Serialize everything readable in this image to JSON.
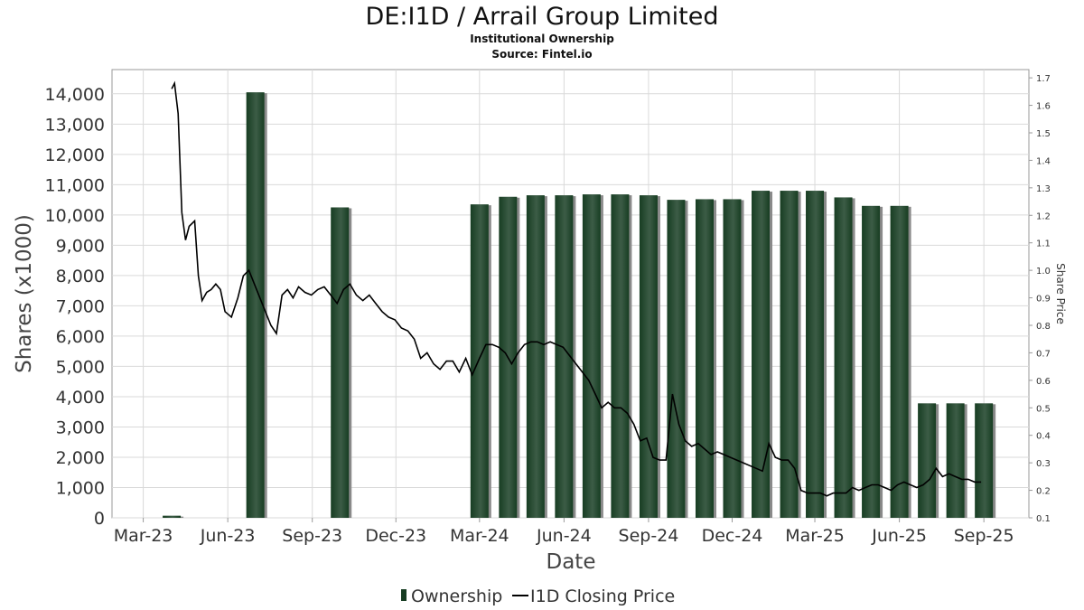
{
  "chart_data": {
    "type": "bar",
    "title": "DE:I1D / Arrail Group Limited",
    "subtitles": [
      "Institutional Ownership",
      "Source: Fintel.io"
    ],
    "xlabel": "Date",
    "ylabel": "Shares (x1000)",
    "y2label": "Share Price",
    "x_ticks": [
      "Mar-23",
      "Jun-23",
      "Sep-23",
      "Dec-23",
      "Mar-24",
      "Jun-24",
      "Sep-24",
      "Dec-24",
      "Mar-25",
      "Jun-25",
      "Sep-25"
    ],
    "y_ticks": [
      0,
      1000,
      2000,
      3000,
      4000,
      5000,
      6000,
      7000,
      8000,
      9000,
      10000,
      11000,
      12000,
      13000,
      14000
    ],
    "y2_ticks": [
      0.1,
      0.2,
      0.3,
      0.4,
      0.5,
      0.6,
      0.7,
      0.8,
      0.9,
      1.0,
      1.1,
      1.2,
      1.3,
      1.4,
      1.5,
      1.6,
      1.7
    ],
    "ylim": [
      0,
      14800
    ],
    "y2lim": [
      0.1,
      1.73
    ],
    "grid": true,
    "legend_position": "bottom",
    "colors": {
      "bar_dark": "#173d22",
      "bar_light": "#3c5c46",
      "bar_shadow": "#8a8a8a",
      "line": "#000000",
      "grid": "#d9d9d9"
    },
    "series": [
      {
        "name": "Ownership",
        "type": "bar",
        "points": [
          {
            "date": "2023-04-01",
            "value": 70
          },
          {
            "date": "2023-07-01",
            "value": 14050
          },
          {
            "date": "2023-10-01",
            "value": 10250
          },
          {
            "date": "2024-03-01",
            "value": 10350
          },
          {
            "date": "2024-04-01",
            "value": 10600
          },
          {
            "date": "2024-05-01",
            "value": 10650
          },
          {
            "date": "2024-06-01",
            "value": 10650
          },
          {
            "date": "2024-07-01",
            "value": 10680
          },
          {
            "date": "2024-08-01",
            "value": 10680
          },
          {
            "date": "2024-09-01",
            "value": 10650
          },
          {
            "date": "2024-10-01",
            "value": 10500
          },
          {
            "date": "2024-11-01",
            "value": 10520
          },
          {
            "date": "2024-12-01",
            "value": 10520
          },
          {
            "date": "2025-01-01",
            "value": 10800
          },
          {
            "date": "2025-02-01",
            "value": 10800
          },
          {
            "date": "2025-03-01",
            "value": 10800
          },
          {
            "date": "2025-04-01",
            "value": 10580
          },
          {
            "date": "2025-05-01",
            "value": 10300
          },
          {
            "date": "2025-06-01",
            "value": 10300
          },
          {
            "date": "2025-07-01",
            "value": 3780
          },
          {
            "date": "2025-08-01",
            "value": 3780
          },
          {
            "date": "2025-09-01",
            "value": 3780
          }
        ]
      },
      {
        "name": "I1D Closing Price",
        "type": "line",
        "points": [
          {
            "date": "2023-04-01",
            "value": 1.66
          },
          {
            "date": "2023-04-04",
            "value": 1.68
          },
          {
            "date": "2023-04-08",
            "value": 1.57
          },
          {
            "date": "2023-04-12",
            "value": 1.21
          },
          {
            "date": "2023-04-16",
            "value": 1.11
          },
          {
            "date": "2023-04-20",
            "value": 1.16
          },
          {
            "date": "2023-04-26",
            "value": 1.18
          },
          {
            "date": "2023-04-30",
            "value": 0.98
          },
          {
            "date": "2023-05-04",
            "value": 0.89
          },
          {
            "date": "2023-05-09",
            "value": 0.92
          },
          {
            "date": "2023-05-14",
            "value": 0.93
          },
          {
            "date": "2023-05-19",
            "value": 0.95
          },
          {
            "date": "2023-05-24",
            "value": 0.93
          },
          {
            "date": "2023-05-29",
            "value": 0.85
          },
          {
            "date": "2023-06-05",
            "value": 0.83
          },
          {
            "date": "2023-06-12",
            "value": 0.9
          },
          {
            "date": "2023-06-18",
            "value": 0.98
          },
          {
            "date": "2023-06-24",
            "value": 1.0
          },
          {
            "date": "2023-06-30",
            "value": 0.95
          },
          {
            "date": "2023-07-06",
            "value": 0.9
          },
          {
            "date": "2023-07-12",
            "value": 0.85
          },
          {
            "date": "2023-07-18",
            "value": 0.8
          },
          {
            "date": "2023-07-24",
            "value": 0.77
          },
          {
            "date": "2023-07-30",
            "value": 0.91
          },
          {
            "date": "2023-08-05",
            "value": 0.93
          },
          {
            "date": "2023-08-11",
            "value": 0.9
          },
          {
            "date": "2023-08-17",
            "value": 0.94
          },
          {
            "date": "2023-08-24",
            "value": 0.92
          },
          {
            "date": "2023-08-31",
            "value": 0.91
          },
          {
            "date": "2023-09-07",
            "value": 0.93
          },
          {
            "date": "2023-09-14",
            "value": 0.94
          },
          {
            "date": "2023-09-21",
            "value": 0.91
          },
          {
            "date": "2023-09-28",
            "value": 0.88
          },
          {
            "date": "2023-10-05",
            "value": 0.93
          },
          {
            "date": "2023-10-12",
            "value": 0.95
          },
          {
            "date": "2023-10-19",
            "value": 0.91
          },
          {
            "date": "2023-10-26",
            "value": 0.89
          },
          {
            "date": "2023-11-02",
            "value": 0.91
          },
          {
            "date": "2023-11-09",
            "value": 0.88
          },
          {
            "date": "2023-11-16",
            "value": 0.85
          },
          {
            "date": "2023-11-23",
            "value": 0.83
          },
          {
            "date": "2023-11-30",
            "value": 0.82
          },
          {
            "date": "2023-12-07",
            "value": 0.79
          },
          {
            "date": "2023-12-14",
            "value": 0.78
          },
          {
            "date": "2023-12-21",
            "value": 0.75
          },
          {
            "date": "2023-12-28",
            "value": 0.68
          },
          {
            "date": "2024-01-04",
            "value": 0.7
          },
          {
            "date": "2024-01-11",
            "value": 0.66
          },
          {
            "date": "2024-01-18",
            "value": 0.64
          },
          {
            "date": "2024-01-25",
            "value": 0.67
          },
          {
            "date": "2024-02-01",
            "value": 0.67
          },
          {
            "date": "2024-02-08",
            "value": 0.63
          },
          {
            "date": "2024-02-15",
            "value": 0.68
          },
          {
            "date": "2024-02-22",
            "value": 0.62
          },
          {
            "date": "2024-03-01",
            "value": 0.68
          },
          {
            "date": "2024-03-08",
            "value": 0.73
          },
          {
            "date": "2024-03-15",
            "value": 0.73
          },
          {
            "date": "2024-03-22",
            "value": 0.72
          },
          {
            "date": "2024-03-29",
            "value": 0.7
          },
          {
            "date": "2024-04-05",
            "value": 0.66
          },
          {
            "date": "2024-04-12",
            "value": 0.7
          },
          {
            "date": "2024-04-19",
            "value": 0.73
          },
          {
            "date": "2024-04-26",
            "value": 0.74
          },
          {
            "date": "2024-05-03",
            "value": 0.74
          },
          {
            "date": "2024-05-10",
            "value": 0.73
          },
          {
            "date": "2024-05-17",
            "value": 0.74
          },
          {
            "date": "2024-05-24",
            "value": 0.73
          },
          {
            "date": "2024-05-31",
            "value": 0.72
          },
          {
            "date": "2024-06-07",
            "value": 0.69
          },
          {
            "date": "2024-06-14",
            "value": 0.66
          },
          {
            "date": "2024-06-21",
            "value": 0.63
          },
          {
            "date": "2024-06-28",
            "value": 0.6
          },
          {
            "date": "2024-07-05",
            "value": 0.55
          },
          {
            "date": "2024-07-12",
            "value": 0.5
          },
          {
            "date": "2024-07-19",
            "value": 0.52
          },
          {
            "date": "2024-07-26",
            "value": 0.5
          },
          {
            "date": "2024-08-02",
            "value": 0.5
          },
          {
            "date": "2024-08-09",
            "value": 0.48
          },
          {
            "date": "2024-08-16",
            "value": 0.44
          },
          {
            "date": "2024-08-23",
            "value": 0.38
          },
          {
            "date": "2024-08-30",
            "value": 0.39
          },
          {
            "date": "2024-09-06",
            "value": 0.32
          },
          {
            "date": "2024-09-13",
            "value": 0.31
          },
          {
            "date": "2024-09-20",
            "value": 0.31
          },
          {
            "date": "2024-09-27",
            "value": 0.55
          },
          {
            "date": "2024-10-04",
            "value": 0.44
          },
          {
            "date": "2024-10-11",
            "value": 0.38
          },
          {
            "date": "2024-10-18",
            "value": 0.36
          },
          {
            "date": "2024-10-25",
            "value": 0.37
          },
          {
            "date": "2024-11-01",
            "value": 0.35
          },
          {
            "date": "2024-11-08",
            "value": 0.33
          },
          {
            "date": "2024-11-15",
            "value": 0.34
          },
          {
            "date": "2024-11-22",
            "value": 0.33
          },
          {
            "date": "2024-11-29",
            "value": 0.32
          },
          {
            "date": "2024-12-06",
            "value": 0.31
          },
          {
            "date": "2024-12-13",
            "value": 0.3
          },
          {
            "date": "2024-12-20",
            "value": 0.29
          },
          {
            "date": "2024-12-27",
            "value": 0.28
          },
          {
            "date": "2025-01-03",
            "value": 0.27
          },
          {
            "date": "2025-01-10",
            "value": 0.37
          },
          {
            "date": "2025-01-17",
            "value": 0.32
          },
          {
            "date": "2025-01-24",
            "value": 0.31
          },
          {
            "date": "2025-01-31",
            "value": 0.31
          },
          {
            "date": "2025-02-07",
            "value": 0.28
          },
          {
            "date": "2025-02-14",
            "value": 0.2
          },
          {
            "date": "2025-02-21",
            "value": 0.19
          },
          {
            "date": "2025-02-28",
            "value": 0.19
          },
          {
            "date": "2025-03-07",
            "value": 0.19
          },
          {
            "date": "2025-03-14",
            "value": 0.18
          },
          {
            "date": "2025-03-21",
            "value": 0.19
          },
          {
            "date": "2025-03-28",
            "value": 0.19
          },
          {
            "date": "2025-04-04",
            "value": 0.19
          },
          {
            "date": "2025-04-11",
            "value": 0.21
          },
          {
            "date": "2025-04-18",
            "value": 0.2
          },
          {
            "date": "2025-04-25",
            "value": 0.21
          },
          {
            "date": "2025-05-02",
            "value": 0.22
          },
          {
            "date": "2025-05-09",
            "value": 0.22
          },
          {
            "date": "2025-05-16",
            "value": 0.21
          },
          {
            "date": "2025-05-23",
            "value": 0.2
          },
          {
            "date": "2025-05-30",
            "value": 0.22
          },
          {
            "date": "2025-06-06",
            "value": 0.23
          },
          {
            "date": "2025-06-13",
            "value": 0.22
          },
          {
            "date": "2025-06-20",
            "value": 0.21
          },
          {
            "date": "2025-06-27",
            "value": 0.22
          },
          {
            "date": "2025-07-04",
            "value": 0.24
          },
          {
            "date": "2025-07-11",
            "value": 0.28
          },
          {
            "date": "2025-07-18",
            "value": 0.25
          },
          {
            "date": "2025-07-25",
            "value": 0.26
          },
          {
            "date": "2025-08-01",
            "value": 0.25
          },
          {
            "date": "2025-08-08",
            "value": 0.24
          },
          {
            "date": "2025-08-15",
            "value": 0.24
          },
          {
            "date": "2025-08-22",
            "value": 0.23
          },
          {
            "date": "2025-08-29",
            "value": 0.23
          }
        ]
      }
    ]
  }
}
